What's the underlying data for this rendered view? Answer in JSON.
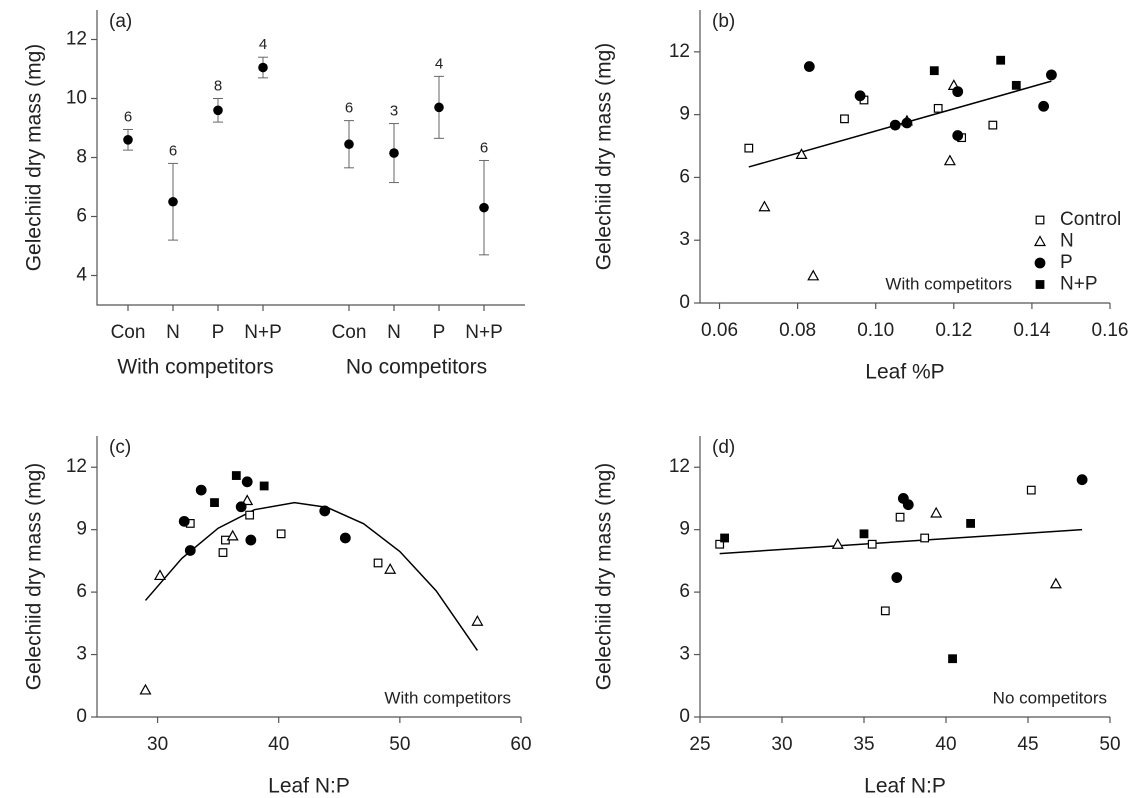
{
  "chart_data": [
    {
      "type": "errorbar",
      "label": "(a)",
      "ylabel": "Gelechiid dry mass (mg)",
      "categories": [
        "Con",
        "N",
        "P",
        "N+P",
        "Con",
        "N",
        "P",
        "N+P"
      ],
      "groups": [
        "With competitors",
        "No competitors"
      ],
      "values": [
        8.6,
        6.5,
        9.6,
        11.05,
        8.45,
        8.15,
        9.7,
        6.3
      ],
      "errors": [
        0.35,
        1.3,
        0.4,
        0.35,
        0.8,
        1.0,
        1.05,
        1.6
      ],
      "n": [
        6,
        6,
        8,
        4,
        6,
        3,
        4,
        6
      ],
      "ylim": [
        3,
        13
      ],
      "yticks": [
        4,
        6,
        8,
        10,
        12
      ],
      "color": "#000000"
    },
    {
      "type": "scatter",
      "label": "(b)",
      "xlabel": "Leaf %P",
      "ylabel": "Gelechiid dry mass (mg)",
      "annotation": "With competitors",
      "xlim": [
        0.055,
        0.16
      ],
      "xticks": [
        0.06,
        0.08,
        {
          "value": 0.1,
          "label": "0.10"
        },
        0.12,
        0.14,
        0.16
      ],
      "ylim": [
        0,
        14
      ],
      "yticks": [
        0,
        3,
        6,
        9,
        12
      ],
      "legend": "lower right",
      "series": [
        {
          "name": "Control",
          "marker": "square",
          "filled": false,
          "color": "#000000",
          "x": [
            0.0675,
            0.092,
            0.097,
            0.116,
            0.122,
            0.13
          ],
          "y": [
            7.4,
            8.8,
            9.7,
            9.3,
            7.9,
            8.5
          ]
        },
        {
          "name": "N",
          "marker": "triangle",
          "filled": false,
          "color": "#000000",
          "x": [
            0.0715,
            0.081,
            0.084,
            0.108,
            0.119,
            0.12
          ],
          "y": [
            4.6,
            7.1,
            1.3,
            8.7,
            6.8,
            10.4
          ]
        },
        {
          "name": "P",
          "marker": "circle",
          "filled": true,
          "color": "#000000",
          "x": [
            0.083,
            0.096,
            0.105,
            0.108,
            0.121,
            0.121,
            0.143,
            0.145
          ],
          "y": [
            11.3,
            9.9,
            8.5,
            8.6,
            10.1,
            8.0,
            9.4,
            10.9
          ]
        },
        {
          "name": "N+P",
          "marker": "square",
          "filled": true,
          "color": "#000000",
          "x": [
            0.115,
            0.132,
            0.136
          ],
          "y": [
            11.1,
            11.6,
            10.4
          ]
        }
      ],
      "fit": {
        "x": [
          0.0675,
          0.145
        ],
        "y": [
          6.5,
          10.6
        ]
      }
    },
    {
      "type": "scatter",
      "label": "(c)",
      "xlabel": "Leaf N:P",
      "ylabel": "Gelechiid dry mass (mg)",
      "annotation": "With competitors",
      "xlim": [
        25,
        60
      ],
      "xticks": [
        30,
        40,
        50,
        60
      ],
      "ylim": [
        0,
        13.5
      ],
      "yticks": [
        0,
        3,
        6,
        9,
        12
      ],
      "series": [
        {
          "marker": "square",
          "filled": false,
          "color": "#000000",
          "x": [
            32.7,
            35.4,
            35.6,
            37.6,
            40.2,
            48.2
          ],
          "y": [
            9.3,
            7.9,
            8.5,
            9.7,
            8.8,
            7.4
          ]
        },
        {
          "marker": "triangle",
          "filled": false,
          "color": "#000000",
          "x": [
            29,
            30.2,
            36.2,
            37.4,
            49.2,
            56.4
          ],
          "y": [
            1.3,
            6.8,
            8.7,
            10.4,
            7.1,
            4.6
          ]
        },
        {
          "marker": "circle",
          "filled": true,
          "color": "#000000",
          "x": [
            32.2,
            32.7,
            33.6,
            36.9,
            37.4,
            37.7,
            43.8,
            45.5
          ],
          "y": [
            9.4,
            8.0,
            10.9,
            10.1,
            11.3,
            8.5,
            9.9,
            8.6
          ]
        },
        {
          "marker": "square",
          "filled": true,
          "color": "#000000",
          "x": [
            34.7,
            36.5,
            38.8
          ],
          "y": [
            10.3,
            11.6,
            11.1
          ]
        }
      ],
      "fit": {
        "x": [
          29,
          32,
          35,
          38,
          41.3,
          44,
          47,
          50,
          53,
          56.4
        ],
        "y": [
          5.6,
          7.62,
          9.07,
          9.96,
          10.3,
          10.07,
          9.29,
          7.95,
          6.06,
          3.2
        ]
      }
    },
    {
      "type": "scatter",
      "label": "(d)",
      "xlabel": "Leaf N:P",
      "ylabel": "Gelechiid dry mass (mg)",
      "annotation": "No competitors",
      "xlim": [
        25,
        50
      ],
      "xticks": [
        25,
        30,
        35,
        40,
        45,
        50
      ],
      "ylim": [
        0,
        13.5
      ],
      "yticks": [
        0,
        3,
        6,
        9,
        12
      ],
      "series": [
        {
          "marker": "square",
          "filled": false,
          "color": "#000000",
          "x": [
            26.2,
            35.5,
            37.2,
            38.7,
            36.3,
            45.2
          ],
          "y": [
            8.3,
            8.3,
            9.6,
            8.6,
            5.1,
            10.9
          ]
        },
        {
          "marker": "triangle",
          "filled": false,
          "color": "#000000",
          "x": [
            33.4,
            39.4,
            46.7
          ],
          "y": [
            8.3,
            9.8,
            6.4
          ]
        },
        {
          "marker": "circle",
          "filled": true,
          "color": "#000000",
          "x": [
            37,
            37.4,
            37.7,
            48.3
          ],
          "y": [
            6.7,
            10.5,
            10.2,
            11.4
          ]
        },
        {
          "marker": "square",
          "filled": true,
          "color": "#000000",
          "x": [
            26.5,
            35,
            40.4,
            41.5
          ],
          "y": [
            8.6,
            8.8,
            2.8,
            9.3
          ]
        }
      ],
      "fit": {
        "x": [
          26.2,
          48.3
        ],
        "y": [
          7.85,
          9.0
        ]
      }
    }
  ]
}
